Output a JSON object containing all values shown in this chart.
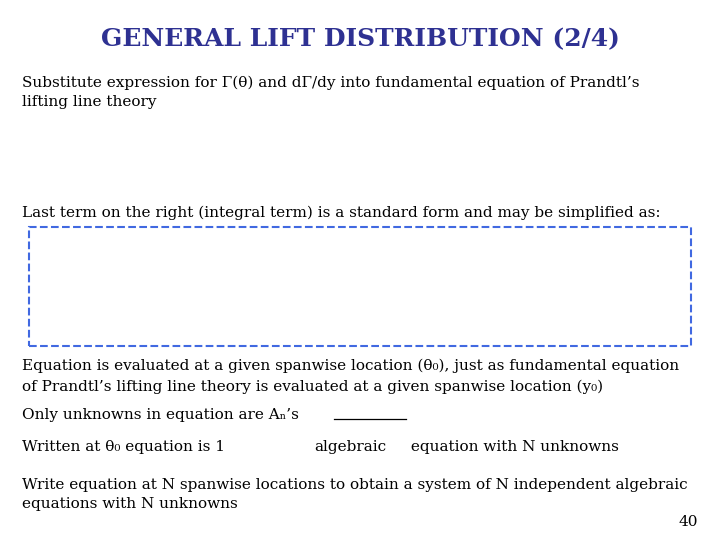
{
  "title": "GENERAL LIFT DISTRIBUTION (2/4)",
  "title_color": "#2E3192",
  "title_fontsize": 18,
  "bg_color": "#FFFFFF",
  "text_color": "#000000",
  "text_fontsize": 11,
  "subtitle": "Substitute expression for Γ(θ) and dΓ/dy into fundamental equation of Prandtl’s\nlifting line theory",
  "middle_text": "Last term on the right (integral term) is a standard form and may be simplified as:",
  "box_color": "#4169E1",
  "bottom_texts": [
    "Equation is evaluated at a given spanwise location (θ₀), just as fundamental equation\nof Prandtl’s lifting line theory is evaluated at a given spanwise location (y₀)",
    "Only unknowns in equation are Aₙ’s",
    "Written at θ₀ equation is 1 algebraic equation with N unknowns",
    "Write equation at N spanwise locations to obtain a system of N independent algebraic\nequations with N unknowns"
  ],
  "underline_line_index": 2,
  "underline_before": "Written at θ₀ equation is 1 ",
  "underline_word": "algebraic",
  "underline_after": " equation with N unknowns",
  "page_number": "40"
}
